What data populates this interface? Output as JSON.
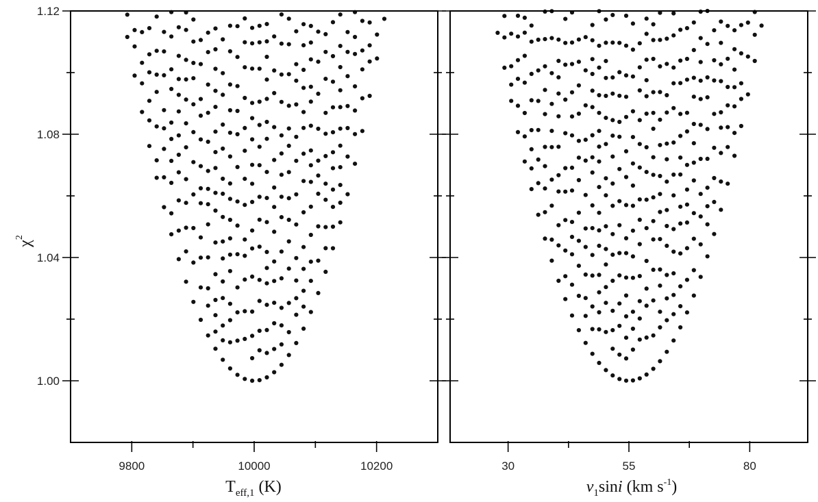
{
  "chart_data": [
    {
      "type": "scatter",
      "panel": "left",
      "xlabel": "T",
      "xlabel_sub": "eff,1",
      "xlabel_rest": " (K)",
      "ylabel": "χ",
      "ylabel_sup": "2",
      "xlim": [
        9700,
        10300
      ],
      "ylim": [
        0.98,
        1.12
      ],
      "x_ticks": [
        9800,
        10000,
        10200
      ],
      "x_tick_labels": [
        "9800",
        "10000",
        "10200"
      ],
      "x_minor_ticks": [
        9900,
        10100
      ],
      "y_ticks": [
        1.0,
        1.04,
        1.08,
        1.12
      ],
      "y_tick_labels": [
        "1.00",
        "1.04",
        "1.08",
        "1.12"
      ],
      "y_minor_ticks": [
        1.02,
        1.06,
        1.1
      ],
      "grid": false,
      "legend": "none",
      "point_color": "#111111",
      "minimum": {
        "x": 10000,
        "y": 1.0
      },
      "curve": {
        "vertex_x": 10000,
        "vertex_y": 1.0,
        "half_width_at_1.12": 215,
        "x_step": 12,
        "y_step": 0.003
      }
    },
    {
      "type": "scatter",
      "panel": "right",
      "xlabel": "v",
      "xlabel_sub": "1",
      "xlabel_rest": "sin",
      "xlabel_italic": "i",
      "xlabel_unit": " (km s",
      "xlabel_unit_sup": "-1",
      "xlabel_unit_end": ")",
      "xlim": [
        18,
        92
      ],
      "ylim": [
        0.98,
        1.12
      ],
      "x_ticks": [
        30,
        55,
        80
      ],
      "x_tick_labels": [
        "30",
        "55",
        "80"
      ],
      "x_minor_ticks": [
        42.5,
        67.5
      ],
      "y_ticks": [
        1.0,
        1.04,
        1.08,
        1.12
      ],
      "y_minor_ticks": [
        1.02,
        1.06,
        1.1
      ],
      "grid": false,
      "legend": "none",
      "point_color": "#111111",
      "minimum": {
        "x": 55,
        "y": 1.0
      },
      "curve": {
        "vertex_x": 55,
        "vertex_y": 1.0,
        "half_width_at_1.12": 28,
        "x_step": 1.4,
        "y_step": 0.003
      }
    }
  ]
}
